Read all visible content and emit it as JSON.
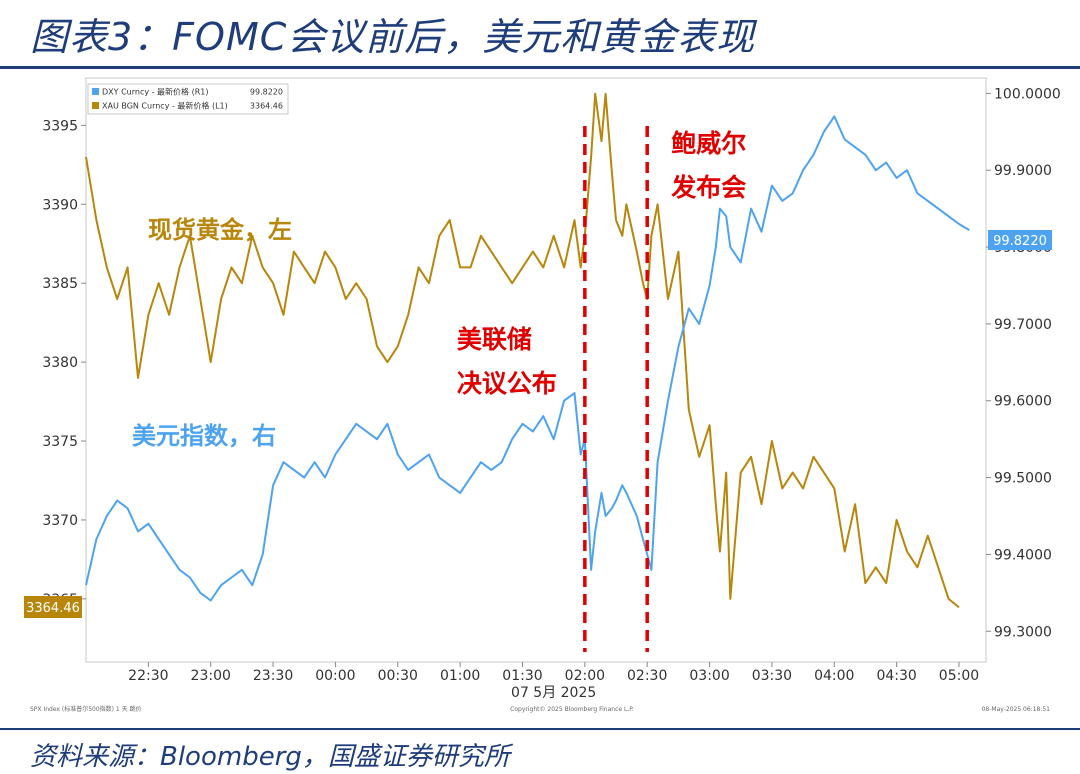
{
  "title": "图表3：FOMC会议前后，美元和黄金表现",
  "source": "资料来源：Bloomberg，国盛证券研究所",
  "colors": {
    "gold": "#b8860b",
    "dxy": "#4da3f0",
    "event": "#e00000",
    "title": "#1f3d7a"
  },
  "chart_data": {
    "type": "line",
    "legend": [
      {
        "text": "DXY Curncy - 最新价格 (R1)",
        "value": "99.8220"
      },
      {
        "text": "XAU BGN Curncy - 最新价格 (L1)",
        "value": "3364.46"
      }
    ],
    "x_ticks": [
      "22:30",
      "23:00",
      "23:30",
      "00:00",
      "00:30",
      "01:00",
      "01:30",
      "02:00",
      "02:30",
      "03:00",
      "03:30",
      "04:00",
      "04:30",
      "05:00"
    ],
    "x_date_label": "07 5月 2025",
    "left_axis": {
      "ticks": [
        "3395",
        "3390",
        "3385",
        "3380",
        "3375",
        "3370",
        "3365"
      ],
      "ylim": [
        3361,
        3398
      ]
    },
    "right_axis": {
      "ticks": [
        "100.0000",
        "99.9000",
        "99.8000",
        "99.7000",
        "99.6000",
        "99.5000",
        "99.4000",
        "99.3000"
      ],
      "ylim": [
        99.26,
        100.02
      ]
    },
    "last_value_labels": {
      "left": "3364.46",
      "right": "99.8220"
    },
    "series": [
      {
        "name": "XAU BGN Curncy",
        "axis": "left",
        "x": [
          "22:00",
          "22:05",
          "22:10",
          "22:15",
          "22:20",
          "22:25",
          "22:30",
          "22:35",
          "22:40",
          "22:45",
          "22:50",
          "22:55",
          "23:00",
          "23:05",
          "23:10",
          "23:15",
          "23:20",
          "23:25",
          "23:30",
          "23:35",
          "23:40",
          "23:45",
          "23:50",
          "23:55",
          "00:00",
          "00:05",
          "00:10",
          "00:15",
          "00:20",
          "00:25",
          "00:30",
          "00:35",
          "00:40",
          "00:45",
          "00:50",
          "00:55",
          "01:00",
          "01:05",
          "01:10",
          "01:15",
          "01:20",
          "01:25",
          "01:30",
          "01:35",
          "01:40",
          "01:45",
          "01:50",
          "01:55",
          "01:58",
          "02:00",
          "02:03",
          "02:05",
          "02:08",
          "02:10",
          "02:13",
          "02:15",
          "02:18",
          "02:20",
          "02:25",
          "02:28",
          "02:30",
          "02:32",
          "02:35",
          "02:40",
          "02:45",
          "02:50",
          "02:55",
          "03:00",
          "03:03",
          "03:05",
          "03:08",
          "03:10",
          "03:15",
          "03:20",
          "03:25",
          "03:30",
          "03:35",
          "03:40",
          "03:45",
          "03:50",
          "03:55",
          "04:00",
          "04:05",
          "04:10",
          "04:15",
          "04:20",
          "04:25",
          "04:30",
          "04:35",
          "04:40",
          "04:45",
          "04:50",
          "04:55",
          "05:00"
        ],
        "values": [
          3393,
          3389,
          3386,
          3384,
          3386,
          3379,
          3383,
          3385,
          3383,
          3386,
          3388,
          3384,
          3380,
          3384,
          3386,
          3385,
          3388,
          3386,
          3385,
          3383,
          3387,
          3386,
          3385,
          3387,
          3386,
          3384,
          3385,
          3384,
          3381,
          3380,
          3381,
          3383,
          3386,
          3385,
          3388,
          3389,
          3386,
          3386,
          3388,
          3387,
          3386,
          3385,
          3386,
          3387,
          3386,
          3388,
          3386,
          3389,
          3386,
          3388,
          3393,
          3397,
          3394,
          3397,
          3392,
          3389,
          3388,
          3390,
          3387,
          3385,
          3384,
          3388,
          3390,
          3384,
          3387,
          3377,
          3374,
          3376,
          3371,
          3368,
          3373,
          3365,
          3373,
          3374,
          3371,
          3375,
          3372,
          3373,
          3372,
          3374,
          3373,
          3372,
          3368,
          3371,
          3366,
          3367,
          3366,
          3370,
          3368,
          3367,
          3369,
          3367,
          3365,
          3364.46
        ]
      },
      {
        "name": "DXY Curncy",
        "axis": "right",
        "x": [
          "22:00",
          "22:05",
          "22:10",
          "22:15",
          "22:20",
          "22:25",
          "22:30",
          "22:35",
          "22:40",
          "22:45",
          "22:50",
          "22:55",
          "23:00",
          "23:05",
          "23:10",
          "23:15",
          "23:20",
          "23:25",
          "23:30",
          "23:35",
          "23:40",
          "23:45",
          "23:50",
          "23:55",
          "00:00",
          "00:05",
          "00:10",
          "00:15",
          "00:20",
          "00:25",
          "00:30",
          "00:35",
          "00:40",
          "00:45",
          "00:50",
          "00:55",
          "01:00",
          "01:05",
          "01:10",
          "01:15",
          "01:20",
          "01:25",
          "01:30",
          "01:35",
          "01:40",
          "01:45",
          "01:50",
          "01:55",
          "01:58",
          "02:00",
          "02:03",
          "02:05",
          "02:08",
          "02:10",
          "02:13",
          "02:15",
          "02:18",
          "02:20",
          "02:25",
          "02:28",
          "02:30",
          "02:32",
          "02:35",
          "02:40",
          "02:45",
          "02:50",
          "02:55",
          "03:00",
          "03:03",
          "03:05",
          "03:08",
          "03:10",
          "03:15",
          "03:20",
          "03:25",
          "03:30",
          "03:35",
          "03:40",
          "03:45",
          "03:50",
          "03:55",
          "04:00",
          "04:05",
          "04:10",
          "04:15",
          "04:20",
          "04:25",
          "04:30",
          "04:35",
          "04:40",
          "04:45",
          "04:50",
          "04:55",
          "05:00",
          "05:05"
        ],
        "values": [
          99.36,
          99.42,
          99.45,
          99.47,
          99.46,
          99.43,
          99.44,
          99.42,
          99.4,
          99.38,
          99.37,
          99.35,
          99.34,
          99.36,
          99.37,
          99.38,
          99.36,
          99.4,
          99.49,
          99.52,
          99.51,
          99.5,
          99.52,
          99.5,
          99.53,
          99.55,
          99.57,
          99.56,
          99.55,
          99.57,
          99.53,
          99.51,
          99.52,
          99.53,
          99.5,
          99.49,
          99.48,
          99.5,
          99.52,
          99.51,
          99.52,
          99.55,
          99.57,
          99.56,
          99.58,
          99.55,
          99.6,
          99.61,
          99.53,
          99.55,
          99.38,
          99.43,
          99.48,
          99.45,
          99.46,
          99.47,
          99.49,
          99.48,
          99.45,
          99.42,
          99.4,
          99.38,
          99.52,
          99.6,
          99.67,
          99.72,
          99.7,
          99.75,
          99.8,
          99.85,
          99.84,
          99.8,
          99.78,
          99.85,
          99.82,
          99.88,
          99.86,
          99.87,
          99.9,
          99.92,
          99.95,
          99.97,
          99.94,
          99.93,
          99.92,
          99.9,
          99.91,
          99.89,
          99.9,
          99.87,
          99.86,
          99.85,
          99.84,
          99.83,
          99.822
        ]
      }
    ],
    "events": [
      {
        "x": "02:00",
        "label_lines": [
          "美联储",
          "决议公布"
        ]
      },
      {
        "x": "02:30",
        "label_lines": [
          "鲍威尔",
          "发布会"
        ]
      }
    ],
    "annotations": [
      {
        "text": "现货黄金，左",
        "series": "XAU BGN Curncy"
      },
      {
        "text": "美元指数，右",
        "series": "DXY Curncy"
      }
    ],
    "footer": {
      "left": "SPX Index (标准普尔500指数) 1 天  跳价",
      "center": "Copyright© 2025 Bloomberg Finance L.P.",
      "right": "08-May-2025 06:18:51"
    }
  }
}
